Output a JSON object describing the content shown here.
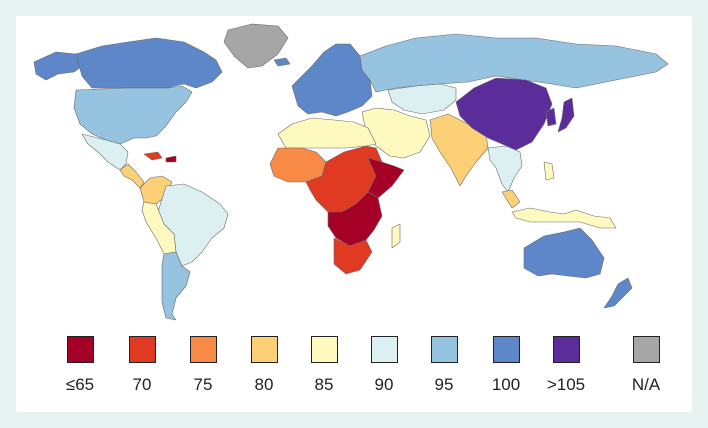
{
  "colors": {
    "le65": "#a50026",
    "c70": "#e03a23",
    "c75": "#f88a46",
    "c80": "#fdd078",
    "c85": "#fef9bf",
    "c90": "#dcf0f2",
    "c95": "#96c3df",
    "c100": "#5d87c8",
    "gt105": "#5a2d9a",
    "na": "#a6a6a6"
  },
  "legend": {
    "items": [
      {
        "label": "≤65",
        "color": "#a50026"
      },
      {
        "label": "70",
        "color": "#e03a23"
      },
      {
        "label": "75",
        "color": "#f88a46"
      },
      {
        "label": "80",
        "color": "#fdd078"
      },
      {
        "label": "85",
        "color": "#fef9bf"
      },
      {
        "label": "90",
        "color": "#dcf0f2"
      },
      {
        "label": "95",
        "color": "#96c3df"
      },
      {
        "label": "100",
        "color": "#5d87c8"
      },
      {
        "label": ">105",
        "color": "#5a2d9a"
      },
      {
        "label": "N/A",
        "color": "#a6a6a6"
      }
    ]
  }
}
